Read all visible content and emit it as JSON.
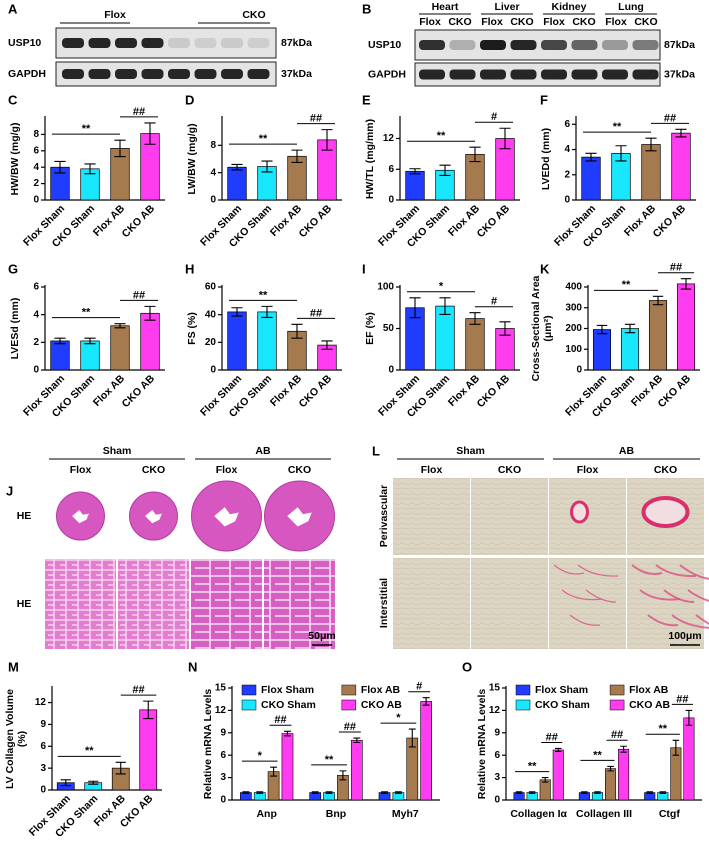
{
  "blots": [
    {
      "label": "A",
      "groups": [
        "Flox",
        "CKO"
      ],
      "rows": [
        {
          "name": "USP10",
          "size": "87kDa"
        },
        {
          "name": "GAPDH",
          "size": "37kDa"
        }
      ]
    },
    {
      "label": "B",
      "tissues": [
        "Heart",
        "Liver",
        "Kidney",
        "Lung"
      ],
      "lanes": [
        "Flox",
        "CKO"
      ],
      "rows": [
        {
          "name": "USP10",
          "size": "87kDa"
        },
        {
          "name": "GAPDH",
          "size": "37kDa"
        }
      ]
    }
  ],
  "histology": [
    {
      "label": "J",
      "groups": [
        "Sham",
        "AB"
      ],
      "genotypes": [
        "Flox",
        "CKO"
      ],
      "rows": [
        "HE",
        "HE"
      ],
      "scale": "50μm"
    },
    {
      "label": "L",
      "groups": [
        "Sham",
        "AB"
      ],
      "genotypes": [
        "Flox",
        "CKO"
      ],
      "rows": [
        "Perivascular",
        "Interstitial"
      ],
      "scale": "100μm"
    }
  ],
  "chart_data": [
    {
      "type": "bar",
      "label": "C",
      "ylabel": "HW/BW (mg/g)",
      "categories": [
        "Flox Sham",
        "CKO Sham",
        "Flox AB",
        "CKO AB"
      ],
      "values": [
        4.0,
        3.8,
        6.3,
        8.1
      ],
      "errors": [
        0.7,
        0.6,
        1.0,
        1.3
      ],
      "colors": [
        "#1f3cff",
        "#19e6ff",
        "#a57a4f",
        "#ff3cf0"
      ],
      "ylim": [
        0,
        10
      ],
      "yticks": [
        0,
        2,
        4,
        6,
        8
      ],
      "significance": [
        "**",
        "##"
      ]
    },
    {
      "type": "bar",
      "label": "D",
      "ylabel": "LW/BW (mg/g)",
      "categories": [
        "Flox Sham",
        "CKO Sham",
        "Flox AB",
        "CKO AB"
      ],
      "values": [
        4.8,
        4.9,
        6.4,
        8.8
      ],
      "errors": [
        0.4,
        0.8,
        0.9,
        1.5
      ],
      "colors": [
        "#1f3cff",
        "#19e6ff",
        "#a57a4f",
        "#ff3cf0"
      ],
      "ylim": [
        0,
        12
      ],
      "yticks": [
        0,
        4,
        8
      ],
      "significance": [
        "**",
        "##"
      ]
    },
    {
      "type": "bar",
      "label": "E",
      "ylabel": "HW/TL (mg/mm)",
      "categories": [
        "Flox Sham",
        "CKO Sham",
        "Flox AB",
        "CKO AB"
      ],
      "values": [
        5.6,
        5.8,
        8.9,
        12.0
      ],
      "errors": [
        0.5,
        1.0,
        1.4,
        2.0
      ],
      "colors": [
        "#1f3cff",
        "#19e6ff",
        "#a57a4f",
        "#ff3cf0"
      ],
      "ylim": [
        0,
        16
      ],
      "yticks": [
        0,
        6,
        12
      ],
      "significance": [
        "**",
        "#"
      ]
    },
    {
      "type": "bar",
      "label": "F",
      "ylabel": "LVEDd (mm)",
      "categories": [
        "Flox Sham",
        "CKO Sham",
        "Flox AB",
        "CKO AB"
      ],
      "values": [
        3.4,
        3.7,
        4.4,
        5.3
      ],
      "errors": [
        0.3,
        0.6,
        0.5,
        0.3
      ],
      "colors": [
        "#1f3cff",
        "#19e6ff",
        "#a57a4f",
        "#ff3cf0"
      ],
      "ylim": [
        0,
        6.5
      ],
      "yticks": [
        0,
        2,
        4,
        6
      ],
      "significance": [
        "**",
        "##"
      ]
    },
    {
      "type": "bar",
      "label": "G",
      "ylabel": "LVESd (mm)",
      "categories": [
        "Flox Sham",
        "CKO Sham",
        "Flox AB",
        "CKO AB"
      ],
      "values": [
        2.1,
        2.1,
        3.2,
        4.1
      ],
      "errors": [
        0.2,
        0.2,
        0.15,
        0.5
      ],
      "colors": [
        "#1f3cff",
        "#19e6ff",
        "#a57a4f",
        "#ff3cf0"
      ],
      "ylim": [
        0,
        6
      ],
      "yticks": [
        0,
        2,
        4,
        6
      ],
      "significance": [
        "**",
        "##"
      ]
    },
    {
      "type": "bar",
      "label": "H",
      "ylabel": "FS (%)",
      "categories": [
        "Flox Sham",
        "CKO Sham",
        "Flox AB",
        "CKO AB"
      ],
      "values": [
        42,
        42,
        28,
        18
      ],
      "errors": [
        3,
        4,
        5,
        3
      ],
      "colors": [
        "#1f3cff",
        "#19e6ff",
        "#a57a4f",
        "#ff3cf0"
      ],
      "ylim": [
        0,
        60
      ],
      "yticks": [
        0,
        20,
        40,
        60
      ],
      "significance": [
        "**",
        "##"
      ]
    },
    {
      "type": "bar",
      "label": "I",
      "ylabel": "EF (%)",
      "categories": [
        "Flox Sham",
        "CKO Sham",
        "Flox AB",
        "CKO AB"
      ],
      "values": [
        75,
        77,
        62,
        50
      ],
      "errors": [
        12,
        10,
        7,
        8
      ],
      "colors": [
        "#1f3cff",
        "#19e6ff",
        "#a57a4f",
        "#ff3cf0"
      ],
      "ylim": [
        0,
        100
      ],
      "yticks": [
        0,
        50,
        100
      ],
      "significance": [
        "*",
        "#"
      ]
    },
    {
      "type": "bar",
      "label": "K",
      "ylabel": [
        "Cross-Sectional Area",
        "(μm²)"
      ],
      "categories": [
        "Flox Sham",
        "CKO Sham",
        "Flox AB",
        "CKO AB"
      ],
      "values": [
        195,
        200,
        335,
        415
      ],
      "errors": [
        20,
        20,
        20,
        25
      ],
      "colors": [
        "#1f3cff",
        "#19e6ff",
        "#a57a4f",
        "#ff3cf0"
      ],
      "ylim": [
        0,
        400
      ],
      "yticks": [
        0,
        100,
        200,
        300,
        400
      ],
      "significance": [
        "**",
        "##"
      ]
    },
    {
      "type": "bar",
      "label": "M",
      "ylabel": [
        "LV Collagen Volume",
        "(%)"
      ],
      "categories": [
        "Flox Sham",
        "CKO Sham",
        "Flox AB",
        "CKO AB"
      ],
      "values": [
        1.0,
        1.0,
        3.0,
        11.0
      ],
      "errors": [
        0.4,
        0.2,
        0.8,
        1.2
      ],
      "colors": [
        "#1f3cff",
        "#19e6ff",
        "#a57a4f",
        "#ff3cf0"
      ],
      "ylim": [
        0,
        14
      ],
      "yticks": [
        0,
        3,
        6,
        9,
        12
      ],
      "significance": [
        "**",
        "##"
      ]
    },
    {
      "type": "grouped_bar",
      "label": "N",
      "ylabel": "Relative mRNA Levels",
      "categories": [
        "Anp",
        "Bnp",
        "Myh7"
      ],
      "legend": "upper left",
      "series": [
        {
          "name": "Flox Sham",
          "color": "#1f3cff",
          "values": [
            1,
            1,
            1
          ],
          "errors": [
            0.1,
            0.1,
            0.1
          ]
        },
        {
          "name": "CKO Sham",
          "color": "#19e6ff",
          "values": [
            1,
            1,
            1
          ],
          "errors": [
            0.1,
            0.1,
            0.1
          ]
        },
        {
          "name": "Flox AB",
          "color": "#a57a4f",
          "values": [
            3.8,
            3.3,
            8.3
          ],
          "errors": [
            0.6,
            0.6,
            1.2
          ]
        },
        {
          "name": "CKO AB",
          "color": "#ff3cf0",
          "values": [
            8.9,
            8.0,
            13.2
          ],
          "errors": [
            0.3,
            0.3,
            0.5
          ]
        }
      ],
      "ylim": [
        0,
        15
      ],
      "yticks": [
        0,
        3,
        6,
        9,
        12,
        15
      ],
      "significance": [
        [
          "*",
          "##"
        ],
        [
          "**",
          "##"
        ],
        [
          "*",
          "#"
        ]
      ]
    },
    {
      "type": "grouped_bar",
      "label": "O",
      "ylabel": "Relative mRNA Levels",
      "categories": [
        "Collagen Iα",
        "Collagen III",
        "Ctgf"
      ],
      "legend": "upper left",
      "series": [
        {
          "name": "Flox Sham",
          "color": "#1f3cff",
          "values": [
            1,
            1,
            1
          ],
          "errors": [
            0.1,
            0.1,
            0.1
          ]
        },
        {
          "name": "CKO Sham",
          "color": "#19e6ff",
          "values": [
            1,
            1,
            1
          ],
          "errors": [
            0.1,
            0.1,
            0.1
          ]
        },
        {
          "name": "Flox AB",
          "color": "#a57a4f",
          "values": [
            2.7,
            4.2,
            7.0
          ],
          "errors": [
            0.3,
            0.3,
            1.0
          ]
        },
        {
          "name": "CKO AB",
          "color": "#ff3cf0",
          "values": [
            6.7,
            6.8,
            11.0
          ],
          "errors": [
            0.2,
            0.4,
            1.0
          ]
        }
      ],
      "ylim": [
        0,
        15
      ],
      "yticks": [
        0,
        3,
        6,
        9,
        12,
        15
      ],
      "significance": [
        [
          "**",
          "##"
        ],
        [
          "**",
          "##"
        ],
        [
          "**",
          "##"
        ]
      ]
    }
  ]
}
